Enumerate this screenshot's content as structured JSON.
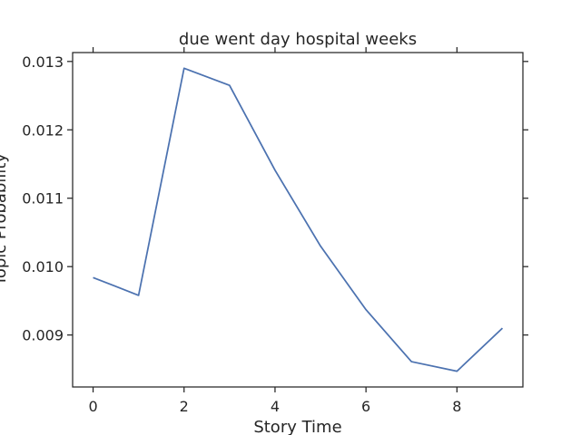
{
  "chart_data": {
    "type": "line",
    "title": "due went day hospital weeks",
    "xlabel": "Story Time",
    "ylabel": "Topic Probability",
    "x": [
      0,
      1,
      2,
      3,
      4,
      5,
      6,
      7,
      8,
      9
    ],
    "series": [
      {
        "values": [
          0.00984,
          0.00958,
          0.0129,
          0.01265,
          0.01141,
          0.0103,
          0.00937,
          0.00861,
          0.00847,
          0.0091
        ],
        "color": "#4c72b0"
      }
    ],
    "xlim": [
      -0.45,
      9.45
    ],
    "ylim": [
      0.00824,
      0.01313
    ],
    "xticks": [
      0,
      2,
      4,
      6,
      8
    ],
    "xtick_labels": [
      "0",
      "2",
      "4",
      "6",
      "8"
    ],
    "yticks": [
      0.009,
      0.01,
      0.011,
      0.012,
      0.013
    ],
    "ytick_labels": [
      "0.009",
      "0.010",
      "0.011",
      "0.012",
      "0.013"
    ],
    "grid": false,
    "legend": "none"
  }
}
